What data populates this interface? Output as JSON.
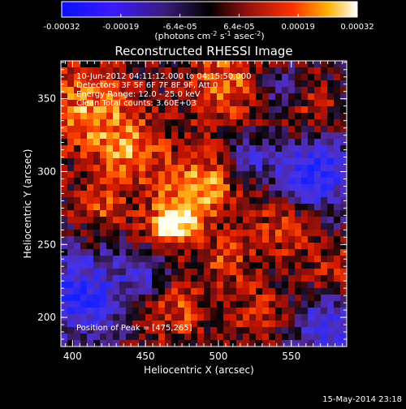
{
  "colorbar": {
    "ticks": [
      "-0.00032",
      "-0.00019",
      "-6.4e-05",
      "6.4e-05",
      "0.00019",
      "0.00032"
    ],
    "unit_main": "(photons cm",
    "unit_sup1": "-2",
    "unit_mid": " s",
    "unit_sup2": "-1",
    "unit_end": " asec",
    "unit_sup3": "-2",
    "unit_close": ")",
    "range": [
      -0.00032,
      0.00032
    ]
  },
  "chart_data": {
    "type": "heatmap",
    "title": "Reconstructed RHESSI Image",
    "xlabel": "Heliocentric X (arcsec)",
    "ylabel": "Heliocentric Y (arcsec)",
    "xlim": [
      392,
      588
    ],
    "ylim": [
      180,
      376
    ],
    "xticks": [
      "400",
      "450",
      "500",
      "550"
    ],
    "yticks": [
      "200",
      "250",
      "300",
      "350"
    ],
    "x_tick_values": [
      400,
      450,
      500,
      550
    ],
    "y_tick_values": [
      200,
      250,
      300,
      350
    ],
    "annotations": [
      "10-Jun-2012 04:11:12.000 to 04:15:50.000",
      "Detectors: 3F 5F 6F 7F 8F 9F, Att 0",
      "Energy Range: 12.0 - 25.0 keV",
      "Clean     Total counts: 3.60E+03"
    ],
    "peak_label": "Position of Peak = [475,265]",
    "peak": [
      475,
      265
    ],
    "hotspots": [
      {
        "x": 468,
        "y": 264,
        "sigma": 11,
        "amp": 1.0
      },
      {
        "x": 488,
        "y": 288,
        "sigma": 16,
        "amp": 0.72
      },
      {
        "x": 440,
        "y": 312,
        "sigma": 18,
        "amp": 0.55
      },
      {
        "x": 412,
        "y": 344,
        "sigma": 20,
        "amp": 0.62
      },
      {
        "x": 505,
        "y": 360,
        "sigma": 18,
        "amp": 0.55
      },
      {
        "x": 560,
        "y": 345,
        "sigma": 16,
        "amp": 0.45
      },
      {
        "x": 545,
        "y": 262,
        "sigma": 14,
        "amp": 0.5
      },
      {
        "x": 580,
        "y": 232,
        "sigma": 14,
        "amp": 0.48
      },
      {
        "x": 470,
        "y": 205,
        "sigma": 14,
        "amp": 0.45
      },
      {
        "x": 530,
        "y": 205,
        "sigma": 14,
        "amp": 0.42
      },
      {
        "x": 418,
        "y": 275,
        "sigma": 12,
        "amp": 0.4
      },
      {
        "x": 505,
        "y": 240,
        "sigma": 12,
        "amp": 0.45
      }
    ],
    "coldspots": [
      {
        "x": 405,
        "y": 215,
        "sigma": 22,
        "amp": 0.85
      },
      {
        "x": 565,
        "y": 300,
        "sigma": 18,
        "amp": 0.8
      },
      {
        "x": 575,
        "y": 195,
        "sigma": 16,
        "amp": 0.6
      },
      {
        "x": 545,
        "y": 355,
        "sigma": 12,
        "amp": 0.5
      },
      {
        "x": 450,
        "y": 230,
        "sigma": 12,
        "amp": 0.45
      },
      {
        "x": 520,
        "y": 310,
        "sigma": 10,
        "amp": 0.5
      }
    ]
  },
  "footer": {
    "timestamp": "15-May-2014 23:18"
  }
}
